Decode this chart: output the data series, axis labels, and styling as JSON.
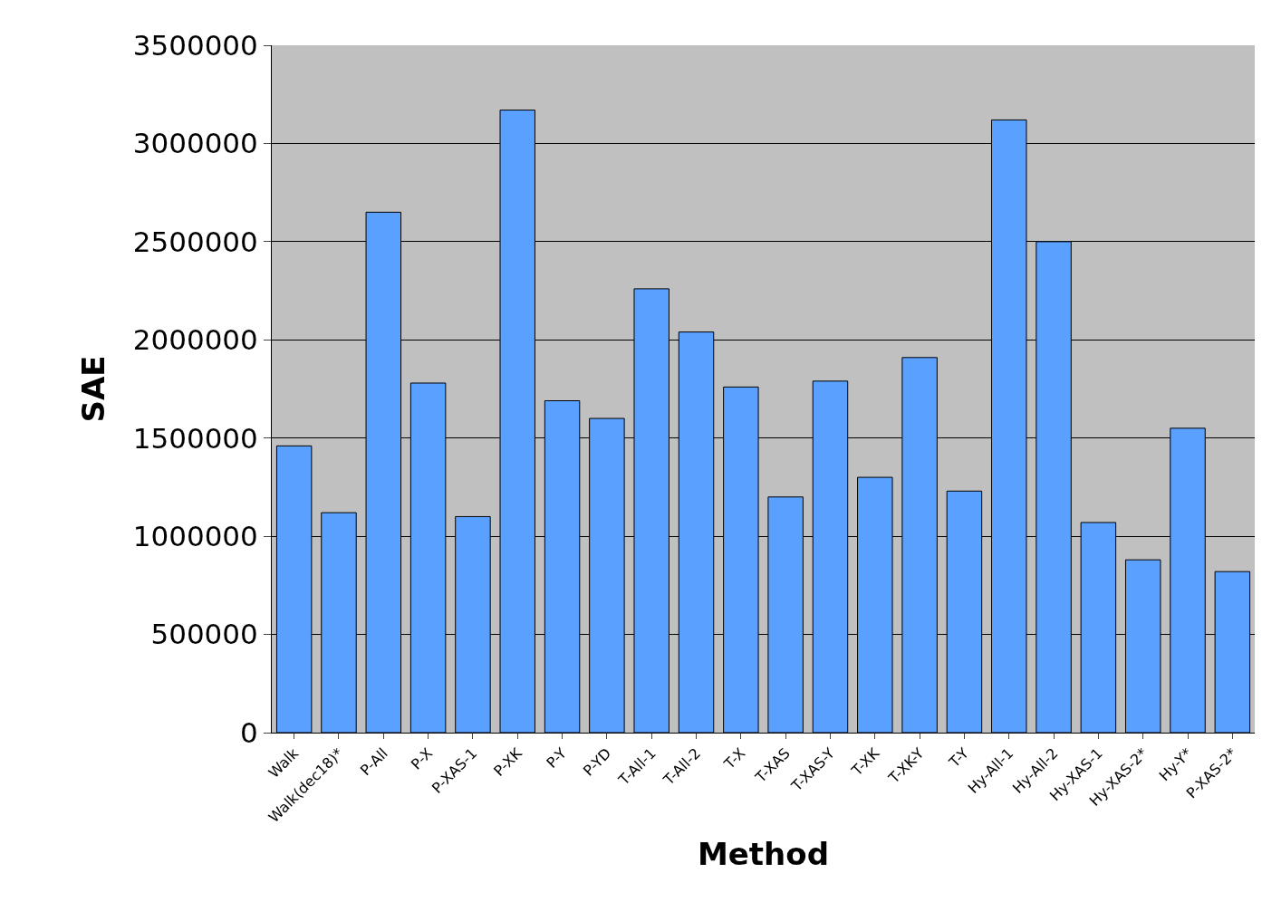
{
  "chart_data": {
    "type": "bar",
    "xlabel": "Method",
    "ylabel": "SAE",
    "categories": [
      "Walk",
      "Walk(dec18)*",
      "P-All",
      "P-X",
      "P-XAS-1",
      "P-XK",
      "P-Y",
      "P-YD",
      "T-All-1",
      "T-All-2",
      "T-X",
      "T-XAS",
      "T-XAS-Y",
      "T-XK",
      "T-XK-Y",
      "T-Y",
      "Hy-All-1",
      "Hy-All-2",
      "Hy-XAS-1",
      "Hy-XAS-2*",
      "Hy-Y*",
      "P-XAS-2*"
    ],
    "values": [
      1460000,
      1120000,
      2650000,
      1780000,
      1100000,
      3170000,
      1690000,
      1600000,
      2260000,
      2040000,
      1760000,
      1200000,
      1790000,
      1300000,
      1910000,
      1230000,
      3120000,
      2500000,
      1070000,
      880000,
      1550000,
      820000
    ],
    "color": "#5aa0ff",
    "ylim": [
      0,
      3500000
    ],
    "yticks": [
      0,
      500000,
      1000000,
      1500000,
      2000000,
      2500000,
      3000000,
      3500000
    ],
    "grid": "y"
  }
}
